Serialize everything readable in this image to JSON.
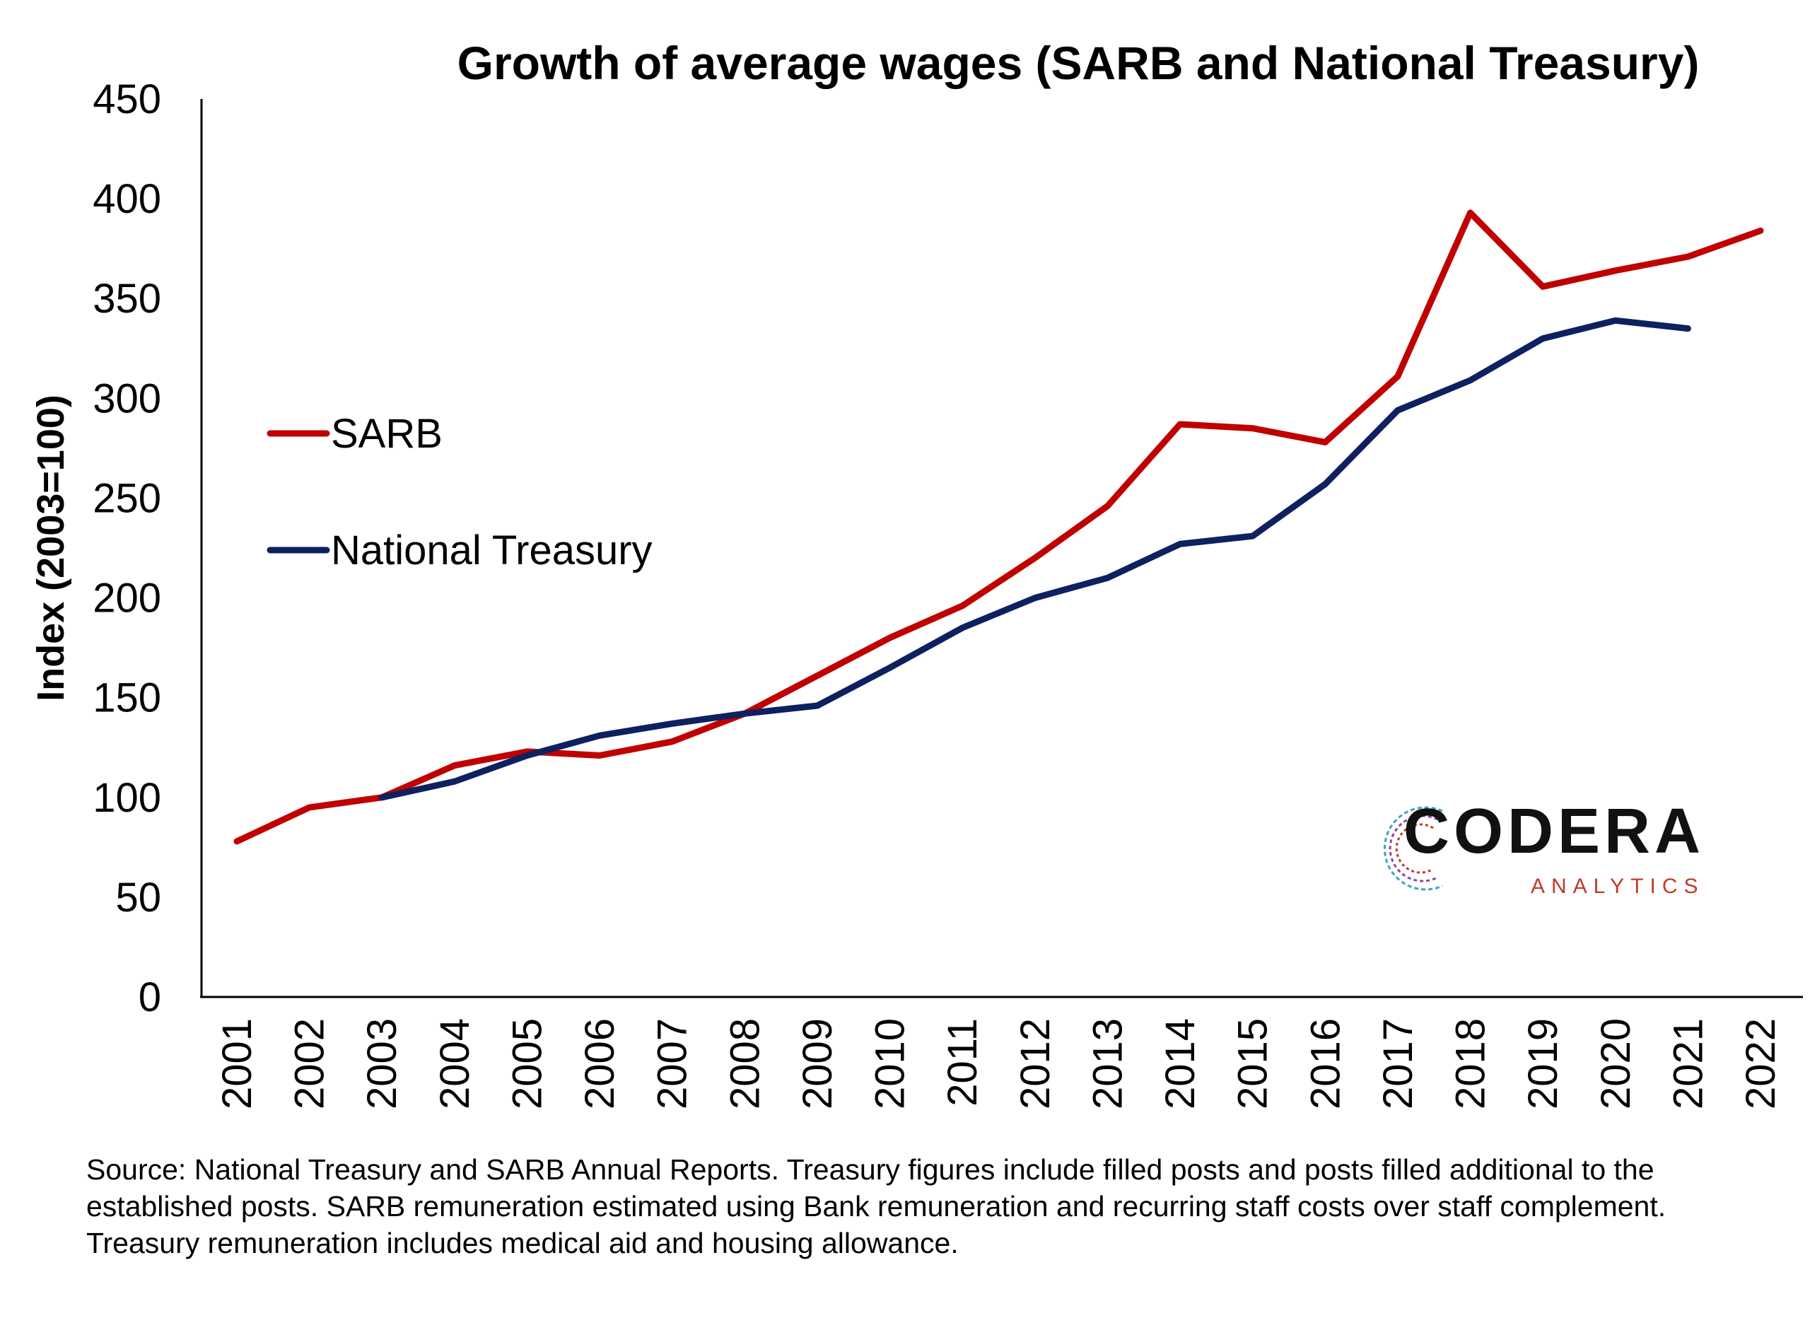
{
  "chart_data": {
    "type": "line",
    "title": "Growth of average wages (SARB and National Treasury)",
    "ylabel": "Index (2003=100)",
    "xlabel": "",
    "ylim": [
      0,
      450
    ],
    "yticks": [
      0,
      50,
      100,
      150,
      200,
      250,
      300,
      350,
      400,
      450
    ],
    "categories": [
      "2001",
      "2002",
      "2003",
      "2004",
      "2005",
      "2006",
      "2007",
      "2008",
      "2009",
      "2010",
      "2011",
      "2012",
      "2013",
      "2014",
      "2015",
      "2016",
      "2017",
      "2018",
      "2019",
      "2020",
      "2021",
      "2022"
    ],
    "series": [
      {
        "name": "SARB",
        "color": "#c00000",
        "values": [
          78,
          95,
          100,
          116,
          123,
          121,
          128,
          142,
          161,
          180,
          196,
          220,
          246,
          287,
          285,
          278,
          311,
          393,
          356,
          364,
          371,
          384
        ]
      },
      {
        "name": "National Treasury",
        "color": "#0d2160",
        "values": [
          null,
          null,
          100,
          108,
          121,
          131,
          137,
          142,
          146,
          165,
          185,
          200,
          210,
          227,
          231,
          257,
          294,
          309,
          330,
          339,
          335,
          null
        ]
      }
    ],
    "grid": false,
    "legend_position": "left"
  },
  "source_note": "Source: National Treasury and SARB Annual Reports. Treasury figures include filled posts and posts filled additional to the established posts. SARB remuneration estimated using Bank remuneration and recurring staff costs over staff complement. Treasury remuneration includes medical aid and housing allowance.",
  "logo": {
    "name": "CODERA",
    "tagline": "ANALYTICS",
    "icon": "codera-logo-icon"
  }
}
